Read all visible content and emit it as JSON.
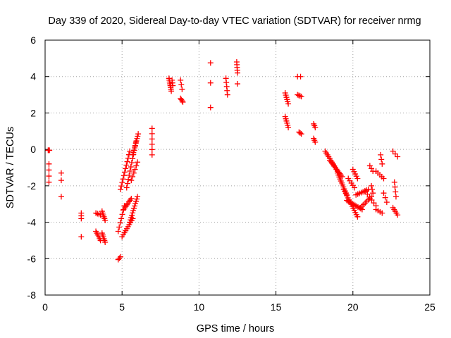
{
  "chart_data": {
    "type": "scatter",
    "title": "Day 339 of 2020, Sidereal Day-to-day VTEC variation (SDTVAR) for receiver nrmg",
    "xlabel": "GPS time / hours",
    "ylabel": "SDTVAR / TECUs",
    "xlim": [
      0,
      25
    ],
    "ylim": [
      -8,
      6
    ],
    "xticks": [
      0,
      5,
      10,
      15,
      20,
      25
    ],
    "yticks": [
      -8,
      -6,
      -4,
      -2,
      0,
      2,
      4,
      6
    ],
    "xtick_labels": [
      "0",
      "5",
      "10",
      "15",
      "20",
      "25"
    ],
    "ytick_labels": [
      "-8",
      "-6",
      "-4",
      "-2",
      "0",
      "2",
      "4",
      "6"
    ],
    "grid": true,
    "marker": "plus",
    "marker_color": "#ff0000",
    "segments": [
      {
        "x0": 0.2,
        "x1": 0.28,
        "y0": -0.05,
        "y1": -0.05,
        "n": 3
      },
      {
        "x0": 0.25,
        "x1": 0.25,
        "y0": -0.8,
        "y1": -1.8,
        "n": 4
      },
      {
        "x0": 1.05,
        "x1": 1.05,
        "y0": -1.3,
        "y1": -1.7,
        "n": 2
      },
      {
        "x0": 1.05,
        "x1": 1.05,
        "y0": -2.6,
        "y1": -2.6,
        "n": 1
      },
      {
        "x0": 2.35,
        "x1": 2.35,
        "y0": -3.5,
        "y1": -3.8,
        "n": 3
      },
      {
        "x0": 2.35,
        "x1": 2.35,
        "y0": -4.8,
        "y1": -4.8,
        "n": 1
      },
      {
        "x0": 3.3,
        "x1": 3.6,
        "y0": -3.5,
        "y1": -3.6,
        "n": 4
      },
      {
        "x0": 3.3,
        "x1": 3.6,
        "y0": -4.5,
        "y1": -5.0,
        "n": 6
      },
      {
        "x0": 3.7,
        "x1": 3.9,
        "y0": -3.4,
        "y1": -3.9,
        "n": 6
      },
      {
        "x0": 3.7,
        "x1": 3.9,
        "y0": -4.6,
        "y1": -5.1,
        "n": 6
      },
      {
        "x0": 4.75,
        "x1": 4.9,
        "y0": -6.05,
        "y1": -5.9,
        "n": 3
      },
      {
        "x0": 4.75,
        "x1": 5.15,
        "y0": -4.5,
        "y1": -3.1,
        "n": 7
      },
      {
        "x0": 4.9,
        "x1": 5.5,
        "y0": -2.2,
        "y1": -0.1,
        "n": 12
      },
      {
        "x0": 5.0,
        "x1": 5.7,
        "y0": -4.8,
        "y1": -3.8,
        "n": 10
      },
      {
        "x0": 5.1,
        "x1": 5.6,
        "y0": -3.3,
        "y1": -2.7,
        "n": 8
      },
      {
        "x0": 5.3,
        "x1": 5.9,
        "y0": -2.1,
        "y1": 0.4,
        "n": 12
      },
      {
        "x0": 5.5,
        "x1": 6.0,
        "y0": -4.0,
        "y1": -2.6,
        "n": 12
      },
      {
        "x0": 5.6,
        "x1": 6.0,
        "y0": -1.7,
        "y1": -0.7,
        "n": 6
      },
      {
        "x0": 5.7,
        "x1": 6.05,
        "y0": -0.3,
        "y1": 0.85,
        "n": 10
      },
      {
        "x0": 6.95,
        "x1": 6.95,
        "y0": 1.15,
        "y1": -0.3,
        "n": 6
      },
      {
        "x0": 8.05,
        "x1": 8.2,
        "y0": 3.9,
        "y1": 3.2,
        "n": 8
      },
      {
        "x0": 8.25,
        "x1": 8.3,
        "y0": 3.8,
        "y1": 3.5,
        "n": 3
      },
      {
        "x0": 8.8,
        "x1": 8.9,
        "y0": 3.8,
        "y1": 3.3,
        "n": 3
      },
      {
        "x0": 8.8,
        "x1": 8.95,
        "y0": 2.8,
        "y1": 2.6,
        "n": 4
      },
      {
        "x0": 10.75,
        "x1": 10.75,
        "y0": 4.75,
        "y1": 4.75,
        "n": 1
      },
      {
        "x0": 10.75,
        "x1": 10.75,
        "y0": 3.65,
        "y1": 3.65,
        "n": 1
      },
      {
        "x0": 10.75,
        "x1": 10.75,
        "y0": 2.3,
        "y1": 2.3,
        "n": 1
      },
      {
        "x0": 11.75,
        "x1": 11.85,
        "y0": 3.9,
        "y1": 3.0,
        "n": 5
      },
      {
        "x0": 12.45,
        "x1": 12.5,
        "y0": 4.8,
        "y1": 4.2,
        "n": 5
      },
      {
        "x0": 12.5,
        "x1": 12.5,
        "y0": 3.6,
        "y1": 3.6,
        "n": 1
      },
      {
        "x0": 15.6,
        "x1": 15.8,
        "y0": 3.1,
        "y1": 2.5,
        "n": 6
      },
      {
        "x0": 15.6,
        "x1": 15.8,
        "y0": 1.8,
        "y1": 1.2,
        "n": 6
      },
      {
        "x0": 16.4,
        "x1": 16.6,
        "y0": 4.0,
        "y1": 4.0,
        "n": 2
      },
      {
        "x0": 16.4,
        "x1": 16.65,
        "y0": 3.0,
        "y1": 2.9,
        "n": 4
      },
      {
        "x0": 16.5,
        "x1": 16.65,
        "y0": 0.95,
        "y1": 0.85,
        "n": 3
      },
      {
        "x0": 17.45,
        "x1": 17.55,
        "y0": 1.4,
        "y1": 1.2,
        "n": 3
      },
      {
        "x0": 17.45,
        "x1": 17.55,
        "y0": 0.6,
        "y1": 0.4,
        "n": 3
      },
      {
        "x0": 18.2,
        "x1": 19.0,
        "y0": -0.1,
        "y1": -1.2,
        "n": 12
      },
      {
        "x0": 18.5,
        "x1": 19.3,
        "y0": -0.6,
        "y1": -1.5,
        "n": 12
      },
      {
        "x0": 19.0,
        "x1": 19.6,
        "y0": -1.3,
        "y1": -2.5,
        "n": 12
      },
      {
        "x0": 19.4,
        "x1": 20.3,
        "y0": -2.2,
        "y1": -3.7,
        "n": 14
      },
      {
        "x0": 19.6,
        "x1": 20.6,
        "y0": -2.8,
        "y1": -3.3,
        "n": 12
      },
      {
        "x0": 19.7,
        "x1": 20.1,
        "y0": -1.6,
        "y1": -2.1,
        "n": 5
      },
      {
        "x0": 20.0,
        "x1": 20.3,
        "y0": -1.1,
        "y1": -1.6,
        "n": 5
      },
      {
        "x0": 20.2,
        "x1": 21.0,
        "y0": -2.5,
        "y1": -2.2,
        "n": 8
      },
      {
        "x0": 20.5,
        "x1": 21.2,
        "y0": -3.2,
        "y1": -2.6,
        "n": 8
      },
      {
        "x0": 20.8,
        "x1": 21.5,
        "y0": -2.3,
        "y1": -3.1,
        "n": 6
      },
      {
        "x0": 21.1,
        "x1": 21.3,
        "y0": -0.9,
        "y1": -1.2,
        "n": 3
      },
      {
        "x0": 21.2,
        "x1": 21.3,
        "y0": -2.0,
        "y1": -2.4,
        "n": 3
      },
      {
        "x0": 21.5,
        "x1": 22.0,
        "y0": -1.2,
        "y1": -1.6,
        "n": 5
      },
      {
        "x0": 21.5,
        "x1": 21.9,
        "y0": -3.3,
        "y1": -3.5,
        "n": 4
      },
      {
        "x0": 21.8,
        "x1": 21.9,
        "y0": -0.3,
        "y1": -0.8,
        "n": 3
      },
      {
        "x0": 22.0,
        "x1": 22.2,
        "y0": -2.4,
        "y1": -2.9,
        "n": 3
      },
      {
        "x0": 22.6,
        "x1": 22.9,
        "y0": -0.1,
        "y1": -0.4,
        "n": 3
      },
      {
        "x0": 22.7,
        "x1": 22.8,
        "y0": -1.8,
        "y1": -2.6,
        "n": 4
      },
      {
        "x0": 22.6,
        "x1": 22.9,
        "y0": -3.2,
        "y1": -3.6,
        "n": 5
      }
    ]
  }
}
